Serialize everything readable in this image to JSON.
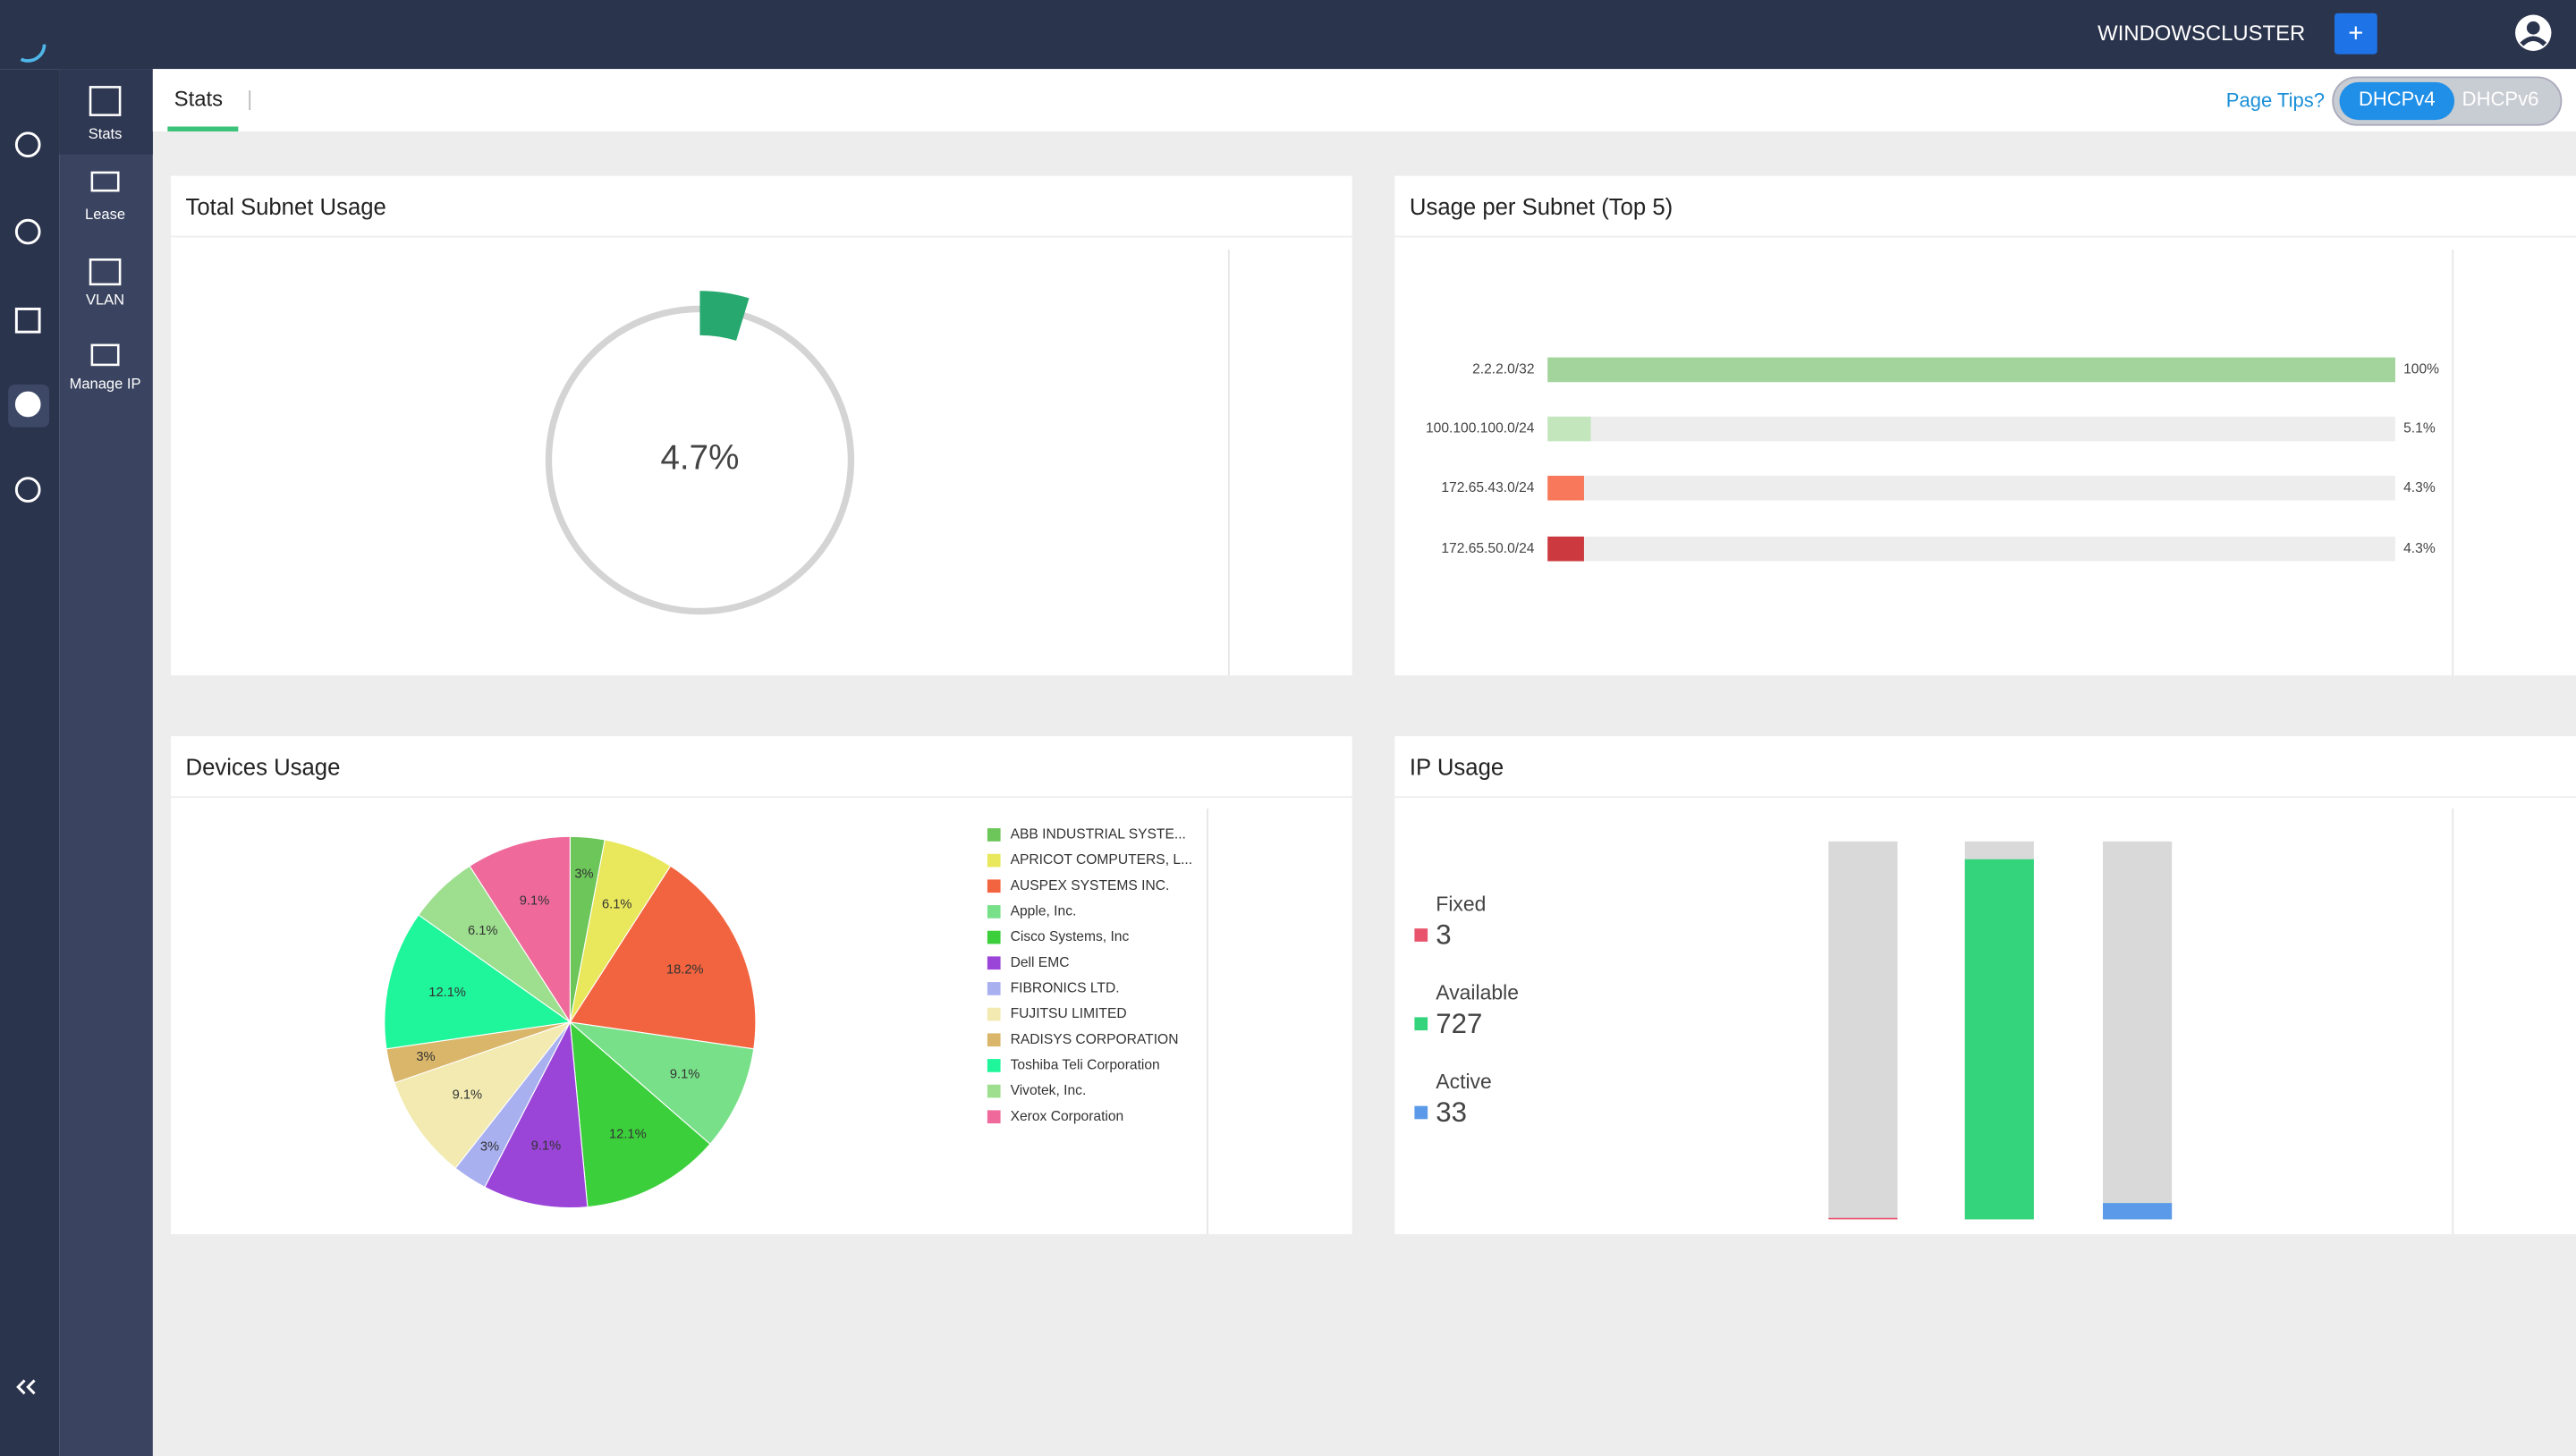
{
  "topbar": {
    "cluster": "WINDOWSCLUSTER",
    "add": "+"
  },
  "sidebar": {
    "items": [
      "Stats",
      "Lease",
      "VLAN",
      "Manage IP"
    ]
  },
  "tabs": {
    "active": "Stats",
    "page_tips": "Page Tips?",
    "toggle": [
      "DHCPv4",
      "DHCPv6"
    ]
  },
  "total_subnet_usage": {
    "type": "gauge",
    "title": "Total Subnet Usage",
    "value": 4.7,
    "value_label": "4.7%",
    "lim": [
      0,
      100
    ],
    "color": "#27a86e"
  },
  "usage_per_subnet": {
    "type": "bar",
    "title": "Usage per Subnet (Top 5)",
    "categories": [
      "2.2.2.0/32",
      "100.100.100.0/24",
      "172.65.43.0/24",
      "172.65.50.0/24"
    ],
    "values": [
      100,
      5.1,
      4.3,
      4.3
    ],
    "value_labels": [
      "100%",
      "5.1%",
      "4.3%",
      "4.3%"
    ],
    "colors": [
      "#a3d49c",
      "#c3e6bd",
      "#f7785a",
      "#cc3a40"
    ],
    "xlim": [
      0,
      100
    ]
  },
  "devices_usage": {
    "type": "pie",
    "title": "Devices Usage",
    "categories": [
      "ABB INDUSTRIAL SYSTE...",
      "APRICOT COMPUTERS, L...",
      "AUSPEX SYSTEMS INC.",
      "Apple, Inc.",
      "Cisco Systems, Inc",
      "Dell EMC",
      "FIBRONICS LTD.",
      "FUJITSU LIMITED",
      "RADISYS CORPORATION",
      "Toshiba Teli Corporation",
      "Vivotek, Inc.",
      "Xerox Corporation"
    ],
    "values": [
      3,
      6.1,
      18.2,
      9.1,
      12.1,
      9.1,
      3,
      9.1,
      3,
      12.1,
      6.1,
      9.1
    ],
    "value_labels": [
      "3%",
      "6.1%",
      "18.2%",
      "9.1%",
      "12.1%",
      "9.1%",
      "3%",
      "9.1%",
      "3%",
      "12.1%",
      "6.1%",
      "9.1%"
    ],
    "colors": [
      "#6cc65a",
      "#e9e85c",
      "#f2643f",
      "#79e08a",
      "#3ccf3c",
      "#9a45d8",
      "#a8b0f0",
      "#f2eab0",
      "#d9b66a",
      "#1ff59a",
      "#9ddf8e",
      "#ef6a9a"
    ]
  },
  "ip_usage": {
    "type": "stacked-bar",
    "title": "IP Usage",
    "categories": [
      "Fixed",
      "Available",
      "Active"
    ],
    "values": [
      3,
      727,
      33
    ],
    "colors": [
      "#e8546c",
      "#34d47c",
      "#5b9ae8"
    ],
    "ylim": [
      0,
      763
    ]
  }
}
